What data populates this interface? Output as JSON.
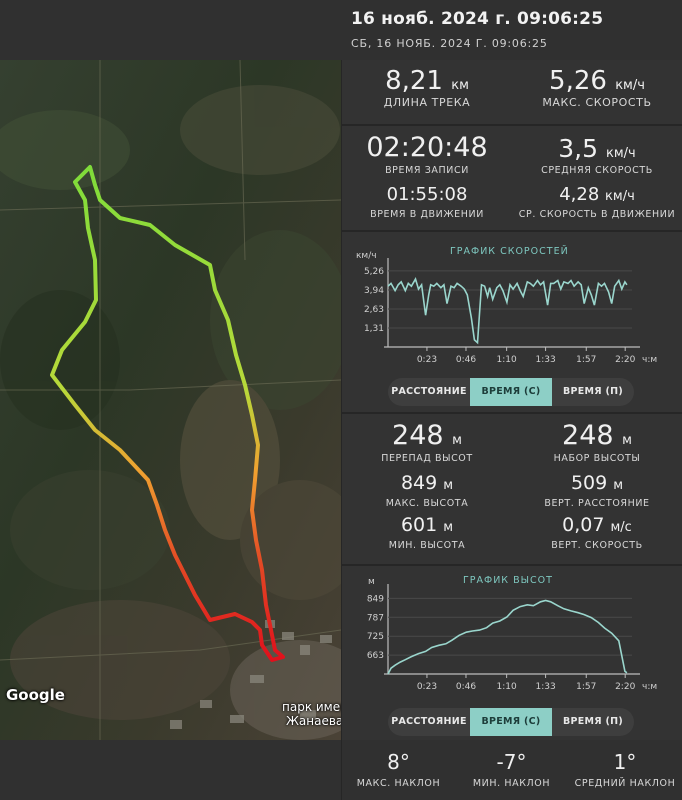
{
  "header": {
    "title": "16 нояб. 2024 г. 09:06:25",
    "subtitle": "СБ, 16 НОЯБ. 2024 Г. 09:06:25"
  },
  "map": {
    "attribution": "Google",
    "place_label_1": "парк имен",
    "place_label_2": "Жанаева"
  },
  "summary": {
    "distance": {
      "value": "8,21",
      "unit": "км",
      "label": "ДЛИНА ТРЕКА"
    },
    "max_speed": {
      "value": "5,26",
      "unit": "км/ч",
      "label": "МАКС. СКОРОСТЬ"
    }
  },
  "time": {
    "record_time": {
      "value": "02:20:48",
      "label": "ВРЕМЯ ЗАПИСИ"
    },
    "avg_speed": {
      "value": "3,5",
      "unit": "км/ч",
      "label": "СРЕДНЯЯ СКОРОСТЬ"
    },
    "moving_time": {
      "value": "01:55:08",
      "label": "ВРЕМЯ В ДВИЖЕНИИ"
    },
    "avg_moving_speed": {
      "value": "4,28",
      "unit": "км/ч",
      "label": "СР. СКОРОСТЬ В ДВИЖЕНИИ"
    }
  },
  "speed_chart": {
    "title": "ГРАФИК СКОРОСТЕЙ",
    "y_unit": "км/ч",
    "y_ticks": [
      "5,26",
      "3,94",
      "2,63",
      "1,31"
    ],
    "x_ticks": [
      "0:23",
      "0:46",
      "1:10",
      "1:33",
      "1:57",
      "2:20"
    ],
    "x_unit": "ч:м",
    "tabs": [
      "РАССТОЯНИЕ",
      "ВРЕМЯ (С)",
      "ВРЕМЯ (П)"
    ],
    "active_tab": 1
  },
  "elevation": {
    "drop": {
      "value": "248",
      "unit": "м",
      "label": "ПЕРЕПАД ВЫСОТ"
    },
    "gain": {
      "value": "248",
      "unit": "м",
      "label": "НАБОР ВЫСОТЫ"
    },
    "max_alt": {
      "value": "849",
      "unit": "м",
      "label": "МАКС. ВЫСОТА"
    },
    "vert_dist": {
      "value": "509",
      "unit": "м",
      "label": "ВЕРТ. РАССТОЯНИЕ"
    },
    "min_alt": {
      "value": "601",
      "unit": "м",
      "label": "МИН. ВЫСОТА"
    },
    "vert_speed": {
      "value": "0,07",
      "unit": "м/с",
      "label": "ВЕРТ. СКОРОСТЬ"
    }
  },
  "elevation_chart": {
    "title": "ГРАФИК ВЫСОТ",
    "y_unit": "м",
    "y_ticks": [
      "849",
      "787",
      "725",
      "663"
    ],
    "x_ticks": [
      "0:23",
      "0:46",
      "1:10",
      "1:33",
      "1:57",
      "2:20"
    ],
    "x_unit": "ч:м",
    "tabs": [
      "РАССТОЯНИЕ",
      "ВРЕМЯ (С)",
      "ВРЕМЯ (П)"
    ],
    "active_tab": 1
  },
  "slope": {
    "max": {
      "value": "8°",
      "label": "МАКС. НАКЛОН"
    },
    "min": {
      "value": "-7°",
      "label": "МИН. НАКЛОН"
    },
    "avg": {
      "value": "1°",
      "label": "СРЕДНИЙ НАКЛОН"
    }
  },
  "colors": {
    "accent": "#8dcfc6",
    "panel_bg": "#333333",
    "divider": "#262626",
    "chart_line": "#9ad6cd"
  },
  "chart_data": [
    {
      "type": "line",
      "title": "ГРАФИК СКОРОСТЕЙ",
      "ylabel": "км/ч",
      "xlabel": "ч:м",
      "ylim": [
        0,
        5.6
      ],
      "xlim": [
        0,
        2.4
      ],
      "x_ticks_hours": [
        0.383,
        0.767,
        1.167,
        1.55,
        1.95,
        2.333
      ],
      "y_ticks": [
        1.31,
        2.63,
        3.94,
        5.26
      ],
      "x": [
        0.0,
        0.03,
        0.07,
        0.1,
        0.13,
        0.17,
        0.2,
        0.23,
        0.27,
        0.3,
        0.33,
        0.37,
        0.4,
        0.42,
        0.45,
        0.48,
        0.52,
        0.55,
        0.58,
        0.62,
        0.65,
        0.68,
        0.7,
        0.72,
        0.75,
        0.78,
        0.82,
        0.85,
        0.88,
        0.92,
        0.95,
        0.98,
        1.0,
        1.03,
        1.07,
        1.1,
        1.13,
        1.17,
        1.2,
        1.23,
        1.27,
        1.3,
        1.33,
        1.37,
        1.4,
        1.43,
        1.47,
        1.5,
        1.53,
        1.57,
        1.6,
        1.63,
        1.67,
        1.7,
        1.73,
        1.77,
        1.8,
        1.83,
        1.87,
        1.9,
        1.93,
        1.97,
        2.0,
        2.03,
        2.07,
        2.1,
        2.13,
        2.17,
        2.2,
        2.23,
        2.27,
        2.3,
        2.33,
        2.35
      ],
      "y": [
        4.2,
        4.4,
        3.9,
        4.3,
        4.5,
        3.9,
        4.4,
        4.2,
        4.7,
        4.0,
        4.3,
        2.2,
        3.6,
        4.3,
        4.2,
        4.4,
        4.1,
        4.3,
        3.0,
        4.2,
        4.1,
        4.4,
        4.3,
        4.2,
        4.0,
        3.6,
        2.0,
        0.5,
        0.3,
        4.3,
        4.2,
        3.5,
        4.1,
        3.3,
        4.1,
        4.3,
        3.9,
        3.1,
        4.3,
        4.0,
        4.4,
        3.9,
        3.5,
        4.5,
        4.4,
        4.2,
        4.6,
        4.3,
        4.5,
        2.9,
        4.4,
        4.4,
        4.6,
        4.0,
        4.5,
        4.4,
        4.6,
        4.2,
        4.5,
        4.3,
        3.0,
        4.1,
        3.6,
        2.9,
        4.4,
        4.2,
        4.4,
        3.8,
        3.0,
        4.2,
        4.6,
        4.0,
        4.5,
        4.3
      ]
    },
    {
      "type": "line",
      "title": "ГРАФИК ВЫСОТ",
      "ylabel": "м",
      "xlabel": "ч:м",
      "ylim": [
        601,
        870
      ],
      "xlim": [
        0,
        2.4
      ],
      "x_ticks_hours": [
        0.383,
        0.767,
        1.167,
        1.55,
        1.95,
        2.333
      ],
      "y_ticks": [
        663,
        725,
        787,
        849
      ],
      "x": [
        0.0,
        0.03,
        0.07,
        0.12,
        0.17,
        0.23,
        0.3,
        0.37,
        0.43,
        0.5,
        0.57,
        0.63,
        0.7,
        0.77,
        0.83,
        0.9,
        0.97,
        1.03,
        1.1,
        1.17,
        1.23,
        1.3,
        1.37,
        1.43,
        1.5,
        1.55,
        1.6,
        1.67,
        1.73,
        1.8,
        1.87,
        1.93,
        2.0,
        2.07,
        2.13,
        2.2,
        2.27,
        2.33,
        2.35
      ],
      "y": [
        601,
        620,
        630,
        640,
        648,
        658,
        668,
        675,
        688,
        695,
        700,
        712,
        728,
        738,
        742,
        745,
        753,
        768,
        775,
        788,
        810,
        822,
        828,
        825,
        838,
        842,
        838,
        825,
        815,
        808,
        802,
        796,
        786,
        770,
        752,
        735,
        710,
        610,
        605
      ]
    }
  ]
}
